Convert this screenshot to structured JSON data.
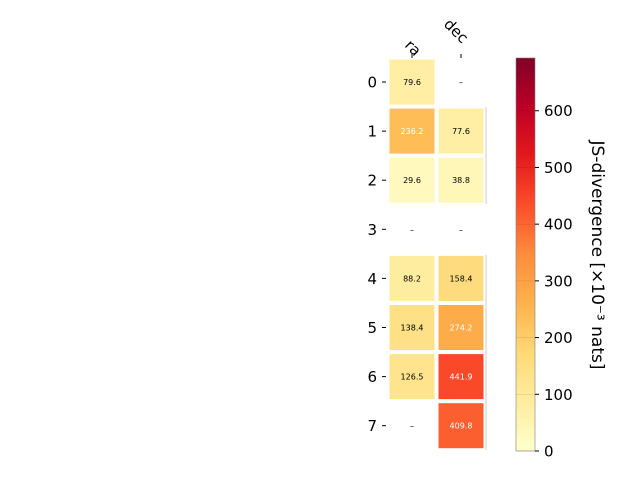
{
  "chart_data": {
    "type": "heatmap",
    "columns": [
      "ra",
      "dec"
    ],
    "rows": [
      "0",
      "1",
      "2",
      "3",
      "4",
      "5",
      "6",
      "7"
    ],
    "values": [
      [
        79.6,
        null
      ],
      [
        236.2,
        77.6
      ],
      [
        29.6,
        38.8
      ],
      [
        null,
        null
      ],
      [
        88.2,
        158.4
      ],
      [
        138.4,
        274.2
      ],
      [
        126.5,
        441.9
      ],
      [
        null,
        409.8
      ]
    ],
    "cell_labels": [
      [
        "79.6",
        "–"
      ],
      [
        "236.2",
        "77.6"
      ],
      [
        "29.6",
        "38.8"
      ],
      [
        "–",
        "–"
      ],
      [
        "88.2",
        "158.4"
      ],
      [
        "138.4",
        "274.2"
      ],
      [
        "126.5",
        "441.9"
      ],
      [
        "–",
        "409.8"
      ]
    ],
    "colorbar": {
      "label": "JS-divergence [×10⁻³ nats]",
      "range": [
        0,
        693
      ],
      "ticks": [
        0,
        100,
        200,
        300,
        400,
        500,
        600
      ],
      "tick_labels": [
        "0",
        "100",
        "200",
        "300",
        "400",
        "500",
        "600"
      ],
      "colormap": "YlOrRd"
    }
  }
}
